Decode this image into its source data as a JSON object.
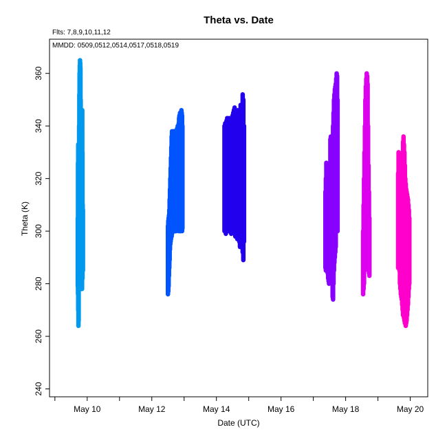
{
  "chart_data": {
    "type": "scatter",
    "title": "Theta  vs. Date",
    "annotations": {
      "fits": "Flts: 7,8,9,10,11,12",
      "mmdd": "MMDD: 0509,0512,0514,0517,0518,0519"
    },
    "xlabel": "Date (UTC)",
    "ylabel": "Theta (K)",
    "xlim": [
      "2019-05-08T20:00",
      "2019-05-20T13:00"
    ],
    "ylim": [
      237,
      373
    ],
    "x_ticks": [
      "May 10",
      "May 12",
      "May 14",
      "May 16",
      "May 18",
      "May 20"
    ],
    "x_tick_dates": [
      "2019-05-10",
      "2019-05-12",
      "2019-05-14",
      "2019-05-16",
      "2019-05-18",
      "2019-05-20"
    ],
    "y_ticks": [
      240,
      260,
      280,
      300,
      320,
      340,
      360
    ],
    "y_tick_labels": [
      "240",
      "260",
      "280",
      "300",
      "320",
      "340",
      "360"
    ],
    "grid": false,
    "series": [
      {
        "flight": "0509",
        "color": "#0099ee",
        "x": [
          "2019-05-09T17:00",
          "2019-05-09T17:10",
          "2019-05-09T17:20",
          "2019-05-09T17:30",
          "2019-05-09T17:40",
          "2019-05-09T17:50",
          "2019-05-09T18:00",
          "2019-05-09T18:10",
          "2019-05-09T18:20",
          "2019-05-09T18:30",
          "2019-05-09T18:40",
          "2019-05-09T18:50",
          "2019-05-09T19:00",
          "2019-05-09T19:10",
          "2019-05-09T19:20",
          "2019-05-09T19:30",
          "2019-05-09T19:40",
          "2019-05-09T19:50",
          "2019-05-09T20:00",
          "2019-05-09T20:10",
          "2019-05-09T20:20",
          "2019-05-09T20:30",
          "2019-05-09T20:40",
          "2019-05-09T20:50"
        ],
        "y_low": [
          279,
          276,
          270,
          264,
          266,
          278,
          280,
          279,
          278,
          281,
          280,
          282,
          279,
          278,
          280,
          281,
          280,
          279,
          279,
          278,
          283,
          282,
          290,
          285
        ],
        "y_high": [
          305,
          326,
          333,
          328,
          320,
          312,
          340,
          352,
          360,
          363,
          365,
          364,
          362,
          350,
          340,
          322,
          318,
          315,
          330,
          338,
          346,
          330,
          310,
          308
        ]
      },
      {
        "flight": "0512",
        "color": "#0055ff",
        "x": [
          "2019-05-12T12:00",
          "2019-05-12T12:15",
          "2019-05-12T12:30",
          "2019-05-12T12:45",
          "2019-05-12T13:00",
          "2019-05-12T13:15",
          "2019-05-12T13:30",
          "2019-05-12T13:45",
          "2019-05-12T14:00",
          "2019-05-12T14:15",
          "2019-05-12T14:30",
          "2019-05-12T14:45",
          "2019-05-12T15:00",
          "2019-05-12T15:15",
          "2019-05-12T15:30",
          "2019-05-12T15:45",
          "2019-05-12T16:00",
          "2019-05-12T16:15",
          "2019-05-12T16:30",
          "2019-05-12T16:45",
          "2019-05-12T17:00",
          "2019-05-12T17:15",
          "2019-05-12T17:30",
          "2019-05-12T17:45",
          "2019-05-12T18:00",
          "2019-05-12T18:15",
          "2019-05-12T18:30",
          "2019-05-12T18:45",
          "2019-05-12T19:00",
          "2019-05-12T19:15",
          "2019-05-12T19:30",
          "2019-05-12T19:45",
          "2019-05-12T20:00",
          "2019-05-12T20:15",
          "2019-05-12T20:30",
          "2019-05-12T20:45",
          "2019-05-12T21:00",
          "2019-05-12T21:15",
          "2019-05-12T21:30",
          "2019-05-12T21:45",
          "2019-05-12T22:00",
          "2019-05-12T22:15",
          "2019-05-12T22:30",
          "2019-05-12T22:45"
        ],
        "y_low": [
          276,
          277,
          279,
          283,
          286,
          289,
          293,
          295,
          296,
          297,
          298,
          298,
          299,
          300,
          300,
          300,
          301,
          300,
          300,
          301,
          300,
          300,
          301,
          302,
          300,
          302,
          303,
          304,
          305,
          306,
          302,
          303,
          300,
          301,
          302,
          301,
          300,
          300,
          301,
          302,
          302,
          301,
          300,
          301
        ],
        "y_high": [
          302,
          304,
          305,
          306,
          308,
          312,
          316,
          320,
          324,
          328,
          332,
          336,
          338,
          337,
          336,
          337,
          338,
          337,
          338,
          338,
          337,
          338,
          337,
          338,
          336,
          337,
          338,
          339,
          339,
          340,
          340,
          339,
          341,
          343,
          344,
          343,
          345,
          344,
          345,
          345,
          346,
          345,
          344,
          340
        ]
      },
      {
        "flight": "0514",
        "color": "#2200ee",
        "x": [
          "2019-05-14T06:00",
          "2019-05-14T06:30",
          "2019-05-14T07:00",
          "2019-05-14T07:30",
          "2019-05-14T08:00",
          "2019-05-14T08:30",
          "2019-05-14T09:00",
          "2019-05-14T09:30",
          "2019-05-14T10:00",
          "2019-05-14T10:30",
          "2019-05-14T11:00",
          "2019-05-14T11:30",
          "2019-05-14T12:00",
          "2019-05-14T12:30",
          "2019-05-14T13:00",
          "2019-05-14T13:30",
          "2019-05-14T14:00",
          "2019-05-14T14:30",
          "2019-05-14T15:00",
          "2019-05-14T15:30",
          "2019-05-14T16:00",
          "2019-05-14T16:30",
          "2019-05-14T17:00",
          "2019-05-14T17:30",
          "2019-05-14T18:00",
          "2019-05-14T18:30",
          "2019-05-14T19:00",
          "2019-05-14T19:30",
          "2019-05-14T20:00",
          "2019-05-14T20:30"
        ],
        "y_low": [
          300,
          300,
          299,
          300,
          301,
          300,
          300,
          300,
          301,
          300,
          299,
          300,
          300,
          300,
          301,
          300,
          298,
          300,
          299,
          297,
          300,
          298,
          296,
          294,
          296,
          300,
          300,
          292,
          289,
          296
        ],
        "y_high": [
          340,
          341,
          340,
          342,
          343,
          341,
          341,
          343,
          342,
          342,
          343,
          342,
          344,
          345,
          346,
          347,
          346,
          345,
          344,
          345,
          346,
          344,
          345,
          346,
          348,
          340,
          344,
          352,
          350,
          340
        ]
      },
      {
        "flight": "0517",
        "color": "#8800ff",
        "x": [
          "2019-05-17T09:00",
          "2019-05-17T09:20",
          "2019-05-17T09:40",
          "2019-05-17T10:00",
          "2019-05-17T10:20",
          "2019-05-17T10:40",
          "2019-05-17T11:00",
          "2019-05-17T11:20",
          "2019-05-17T11:40",
          "2019-05-17T12:00",
          "2019-05-17T12:20",
          "2019-05-17T12:40",
          "2019-05-17T13:00",
          "2019-05-17T13:20",
          "2019-05-17T13:40",
          "2019-05-17T14:00",
          "2019-05-17T14:20",
          "2019-05-17T14:40",
          "2019-05-17T15:00",
          "2019-05-17T15:20",
          "2019-05-17T15:40",
          "2019-05-17T16:00",
          "2019-05-17T16:20",
          "2019-05-17T16:40",
          "2019-05-17T17:00",
          "2019-05-17T17:20",
          "2019-05-17T17:40",
          "2019-05-17T18:00"
        ],
        "y_low": [
          286,
          285,
          286,
          288,
          287,
          284,
          282,
          281,
          280,
          281,
          285,
          288,
          290,
          288,
          285,
          280,
          275,
          274,
          280,
          285,
          288,
          290,
          292,
          294,
          300,
          305,
          310,
          300
        ],
        "y_high": [
          315,
          320,
          326,
          325,
          322,
          318,
          316,
          314,
          312,
          318,
          325,
          335,
          336,
          328,
          320,
          330,
          335,
          340,
          345,
          350,
          352,
          354,
          355,
          356,
          358,
          360,
          359,
          350
        ]
      },
      {
        "flight": "0518",
        "color": "#dd00ee",
        "x": [
          "2019-05-18T13:00",
          "2019-05-18T13:20",
          "2019-05-18T13:40",
          "2019-05-18T14:00",
          "2019-05-18T14:20",
          "2019-05-18T14:40",
          "2019-05-18T15:00",
          "2019-05-18T15:20",
          "2019-05-18T15:40",
          "2019-05-18T16:00",
          "2019-05-18T16:20",
          "2019-05-18T16:40",
          "2019-05-18T17:00",
          "2019-05-18T17:20",
          "2019-05-18T17:40"
        ],
        "y_low": [
          276,
          278,
          280,
          285,
          290,
          295,
          300,
          305,
          302,
          298,
          292,
          288,
          285,
          284,
          283
        ],
        "y_high": [
          300,
          310,
          320,
          330,
          340,
          350,
          355,
          358,
          360,
          359,
          356,
          340,
          325,
          315,
          305
        ]
      },
      {
        "flight": "0519",
        "color": "#ff00cc",
        "x": [
          "2019-05-19T15:00",
          "2019-05-19T15:20",
          "2019-05-19T15:40",
          "2019-05-19T16:00",
          "2019-05-19T16:20",
          "2019-05-19T16:40",
          "2019-05-19T17:00",
          "2019-05-19T17:20",
          "2019-05-19T17:40",
          "2019-05-19T18:00",
          "2019-05-19T18:20",
          "2019-05-19T18:40",
          "2019-05-19T19:00",
          "2019-05-19T19:20",
          "2019-05-19T19:40",
          "2019-05-19T20:00",
          "2019-05-19T20:20",
          "2019-05-19T20:40",
          "2019-05-19T21:00",
          "2019-05-19T21:20",
          "2019-05-19T21:40",
          "2019-05-19T22:00",
          "2019-05-19T22:20",
          "2019-05-19T22:40",
          "2019-05-19T23:00",
          "2019-05-19T23:20"
        ],
        "y_low": [
          286,
          288,
          290,
          285,
          280,
          278,
          276,
          275,
          274,
          272,
          270,
          268,
          268,
          267,
          266,
          265,
          265,
          264,
          265,
          266,
          268,
          270,
          272,
          275,
          278,
          280
        ],
        "y_high": [
          322,
          330,
          328,
          325,
          320,
          318,
          316,
          315,
          320,
          326,
          330,
          334,
          336,
          333,
          330,
          325,
          320,
          318,
          316,
          315,
          314,
          313,
          312,
          310,
          308,
          305
        ]
      }
    ]
  }
}
